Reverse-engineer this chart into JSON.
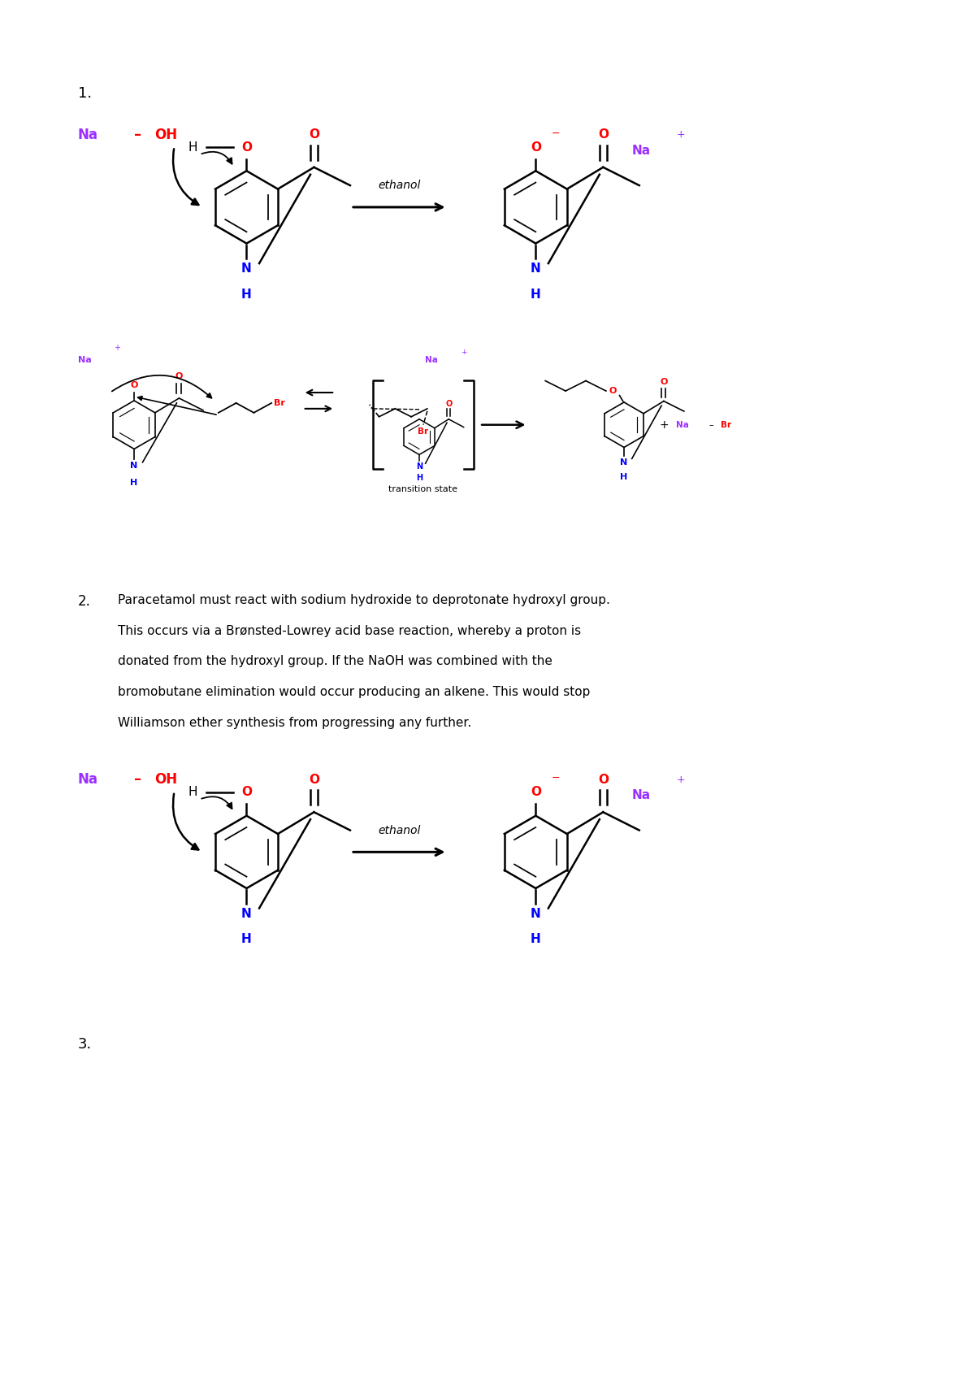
{
  "background_color": "#ffffff",
  "page_width": 12.0,
  "page_height": 16.98,
  "dpi": 100,
  "purple": "#9B30FF",
  "red": "#FF0000",
  "blue": "#0000FF",
  "black": "#000000",
  "q1_label": "1.",
  "q2_label": "2.",
  "q3_label": "3.",
  "q2_text_line1": "Paracetamol must react with sodium hydroxide to deprotonate hydroxyl group.",
  "q2_text_line2": "This occurs via a Brønsted-Lowrey acid base reaction, whereby a proton is",
  "q2_text_line3": "donated from the hydroxyl group. If the NaOH was combined with the",
  "q2_text_line4": "bromobutane elimination would occur producing an alkene. This would stop",
  "q2_text_line5": "Williamson ether synthesis from progressing any further.",
  "ethanol": "ethanol",
  "transition_state": "transition state",
  "na_oh_na": "Na",
  "na_oh_dash": "–",
  "na_oh_oh": "OH",
  "na_plus": "Na",
  "na_plus_sign": "+",
  "na_br_na": "Na",
  "na_br_dash": "–",
  "na_br_br": "Br"
}
